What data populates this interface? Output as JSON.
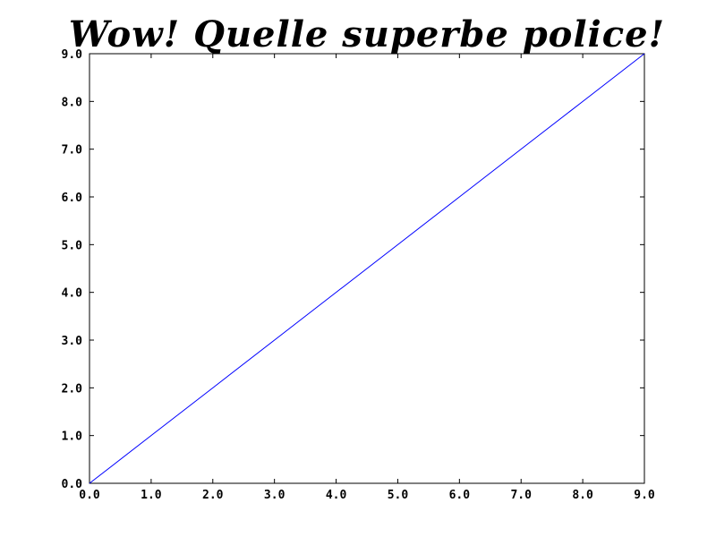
{
  "chart_data": {
    "type": "line",
    "title": "Wow! Quelle superbe police!",
    "xlabel": "",
    "ylabel": "",
    "xlim": [
      0.0,
      9.0
    ],
    "ylim": [
      0.0,
      9.0
    ],
    "x_ticks": [
      "0.0",
      "1.0",
      "2.0",
      "3.0",
      "4.0",
      "5.0",
      "6.0",
      "7.0",
      "8.0",
      "9.0"
    ],
    "y_ticks": [
      "0.0",
      "1.0",
      "2.0",
      "3.0",
      "4.0",
      "5.0",
      "6.0",
      "7.0",
      "8.0",
      "9.0"
    ],
    "grid": false,
    "series": [
      {
        "x": [
          0,
          1,
          2,
          3,
          4,
          5,
          6,
          7,
          8,
          9
        ],
        "y": [
          0,
          1,
          2,
          3,
          4,
          5,
          6,
          7,
          8,
          9
        ],
        "color": "#0000ff"
      }
    ]
  }
}
